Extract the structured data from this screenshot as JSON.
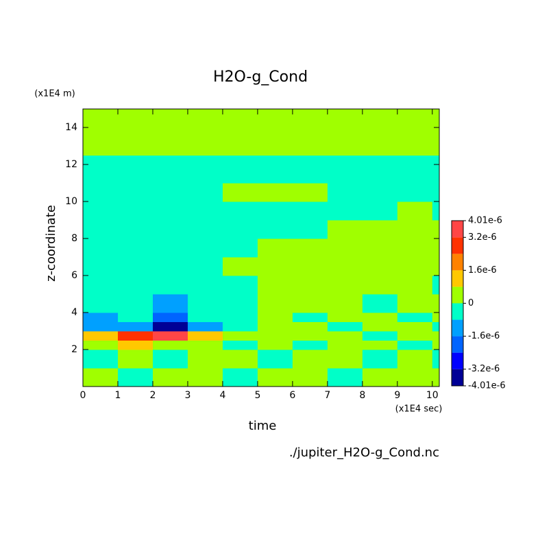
{
  "chart_data": {
    "type": "contour",
    "title": "H2O-g_Cond",
    "xlabel": "time",
    "xunit": "(x1E4 sec)",
    "ylabel": "z-coordinate",
    "yunit": "(x1E4 m)",
    "source": "./jupiter_H2O-g_Cond.nc",
    "xlim": [
      0,
      10.2
    ],
    "ylim": [
      0,
      15
    ],
    "xticks": [
      0,
      1,
      2,
      3,
      4,
      5,
      6,
      7,
      8,
      9,
      10
    ],
    "yticks": [
      2,
      4,
      6,
      8,
      10,
      12,
      14
    ],
    "x_edges": [
      0,
      1,
      2,
      3,
      4,
      5,
      6,
      7,
      8,
      9,
      10,
      10.2
    ],
    "y_edges": [
      0,
      1,
      2,
      2.5,
      3,
      3.5,
      4,
      5,
      6,
      7,
      8,
      9,
      10,
      11,
      12.5,
      15
    ],
    "z": [
      [
        3e-07,
        -3e-07,
        3e-07,
        3e-07,
        -3e-07,
        3e-07,
        3e-07,
        -3e-07,
        3e-07,
        3e-07,
        3e-07
      ],
      [
        -3e-07,
        3e-07,
        -3e-07,
        3e-07,
        3e-07,
        -3e-07,
        3e-07,
        3e-07,
        -3e-07,
        3e-07,
        -3e-07
      ],
      [
        3e-07,
        1.2e-06,
        3e-07,
        3e-07,
        -3e-07,
        3e-07,
        -3e-07,
        3e-07,
        3e-07,
        -3e-07,
        3e-07
      ],
      [
        1.2e-06,
        2.8e-06,
        3.6e-06,
        1.2e-06,
        3e-07,
        3e-07,
        3e-07,
        3e-07,
        -3e-07,
        3e-07,
        3e-07
      ],
      [
        -1.2e-06,
        -1.2e-06,
        -3.6e-06,
        -1.2e-06,
        -3e-07,
        3e-07,
        3e-07,
        -3e-07,
        3e-07,
        3e-07,
        -3e-07
      ],
      [
        -1.2e-06,
        -3e-07,
        -2e-06,
        -3e-07,
        -3e-07,
        3e-07,
        -3e-07,
        3e-07,
        3e-07,
        -3e-07,
        3e-07
      ],
      [
        -3e-07,
        -3e-07,
        -1.2e-06,
        -3e-07,
        -3e-07,
        3e-07,
        3e-07,
        3e-07,
        -3e-07,
        3e-07,
        3e-07
      ],
      [
        -3e-07,
        -3e-07,
        -3e-07,
        -3e-07,
        -3e-07,
        3e-07,
        3e-07,
        3e-07,
        3e-07,
        3e-07,
        -3e-07
      ],
      [
        -3e-07,
        -3e-07,
        -3e-07,
        -3e-07,
        3e-07,
        3e-07,
        3e-07,
        3e-07,
        3e-07,
        3e-07,
        3e-07
      ],
      [
        -3e-07,
        -3e-07,
        -3e-07,
        -3e-07,
        -3e-07,
        3e-07,
        3e-07,
        3e-07,
        3e-07,
        3e-07,
        3e-07
      ],
      [
        -3e-07,
        -3e-07,
        -3e-07,
        -3e-07,
        -3e-07,
        -3e-07,
        -3e-07,
        3e-07,
        3e-07,
        3e-07,
        3e-07
      ],
      [
        -3e-07,
        -3e-07,
        -3e-07,
        -3e-07,
        -3e-07,
        -3e-07,
        -3e-07,
        -3e-07,
        -3e-07,
        3e-07,
        -3e-07
      ],
      [
        -3e-07,
        -3e-07,
        -3e-07,
        -3e-07,
        3e-07,
        3e-07,
        3e-07,
        -3e-07,
        -3e-07,
        -3e-07,
        -3e-07
      ],
      [
        -3e-07,
        -3e-07,
        -3e-07,
        -3e-07,
        -3e-07,
        -3e-07,
        -3e-07,
        -3e-07,
        -3e-07,
        -3e-07,
        -3e-07
      ],
      [
        3e-07,
        3e-07,
        3e-07,
        3e-07,
        3e-07,
        3e-07,
        3e-07,
        3e-07,
        3e-07,
        3e-07,
        3e-07
      ]
    ],
    "levels": [
      -4.01e-06,
      -3.2e-06,
      -2.4e-06,
      -1.6e-06,
      -8e-07,
      0,
      8e-07,
      1.6e-06,
      2.4e-06,
      3.2e-06,
      4.01e-06
    ],
    "colors": [
      "#000096",
      "#0000ff",
      "#0064ff",
      "#00a0ff",
      "#00ffc8",
      "#a0ff00",
      "#ffc800",
      "#ff8200",
      "#ff3200",
      "#ff4646"
    ],
    "cbticks": [
      {
        "value": 4.01e-06,
        "label": "4.01e-6"
      },
      {
        "value": 3.2e-06,
        "label": "3.2e-6"
      },
      {
        "value": 1.6e-06,
        "label": "1.6e-6"
      },
      0,
      {
        "value": -1.6e-06,
        "label": "-1.6e-6"
      },
      {
        "value": -3.2e-06,
        "label": "-3.2e-6"
      },
      {
        "value": -4.01e-06,
        "label": "-4.01e-6"
      }
    ]
  }
}
